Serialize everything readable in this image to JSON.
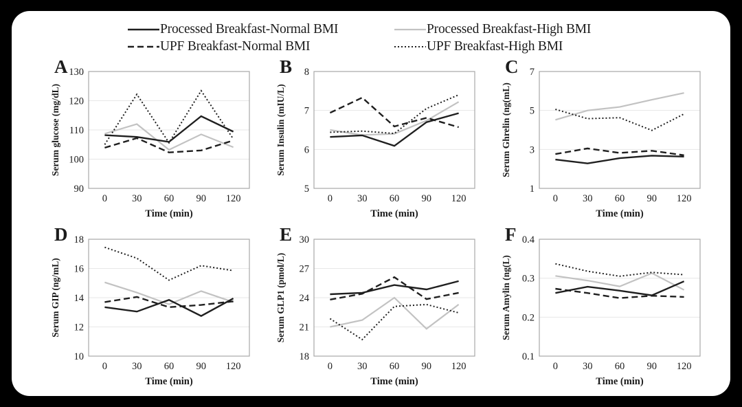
{
  "colors": {
    "frame_bg": "#000000",
    "panel_bg": "#ffffff",
    "line_black": "#1f1f1f",
    "line_gray": "#c2c2c2",
    "plot_border": "#a8a8a8",
    "gridline": "#e7e7e7",
    "text": "#1a1a1a"
  },
  "legend": {
    "items": [
      {
        "label": "Processed Breakfast-Normal BMI",
        "style": "solid",
        "color": "#1f1f1f"
      },
      {
        "label": "Processed Breakfast-High BMI",
        "style": "solid",
        "color": "#c2c2c2"
      },
      {
        "label": "UPF Breakfast-Normal BMI",
        "style": "dashed",
        "color": "#1f1f1f"
      },
      {
        "label": "UPF Breakfast-High BMI",
        "style": "dotted",
        "color": "#1f1f1f"
      }
    ]
  },
  "chart_data": [
    {
      "letter": "A",
      "type": "line",
      "ylabel": "Serum glucose (mg/dL)",
      "xlabel": "Time (min)",
      "x": [
        0,
        30,
        60,
        90,
        120
      ],
      "ylim": [
        90,
        130
      ],
      "yticks": [
        90,
        100,
        110,
        120,
        130
      ],
      "ydecimals": 0,
      "grid": true,
      "series": [
        {
          "name": "Processed Breakfast-Normal BMI",
          "values": [
            108.2,
            107.6,
            105.9,
            114.7,
            109.4
          ]
        },
        {
          "name": "Processed Breakfast-High BMI",
          "values": [
            108.7,
            112.0,
            103.2,
            108.5,
            104.1
          ]
        },
        {
          "name": "UPF Breakfast-Normal BMI",
          "values": [
            103.9,
            107.2,
            102.3,
            103.0,
            106.4
          ]
        },
        {
          "name": "UPF Breakfast-High BMI",
          "values": [
            105.0,
            122.2,
            105.6,
            123.4,
            106.9
          ]
        }
      ]
    },
    {
      "letter": "B",
      "type": "line",
      "ylabel": "Serum Insulin (mIU/L)",
      "xlabel": "Time (min)",
      "x": [
        0,
        30,
        60,
        90,
        120
      ],
      "ylim": [
        5,
        8
      ],
      "yticks": [
        5,
        6,
        7,
        8
      ],
      "ydecimals": 0,
      "grid": true,
      "series": [
        {
          "name": "Processed Breakfast-Normal BMI",
          "values": [
            6.32,
            6.36,
            6.09,
            6.7,
            6.93
          ]
        },
        {
          "name": "Processed Breakfast-High BMI",
          "values": [
            6.5,
            6.37,
            6.4,
            6.74,
            7.22
          ]
        },
        {
          "name": "UPF Breakfast-Normal BMI",
          "values": [
            6.94,
            7.33,
            6.59,
            6.81,
            6.57
          ]
        },
        {
          "name": "UPF Breakfast-High BMI",
          "values": [
            6.44,
            6.47,
            6.41,
            7.05,
            7.4
          ]
        }
      ]
    },
    {
      "letter": "C",
      "type": "line",
      "ylabel": "Serum Ghrelin (ng(mL)",
      "xlabel": "Time (min)",
      "x": [
        0,
        30,
        60,
        90,
        120
      ],
      "ylim": [
        1,
        7
      ],
      "yticks": [
        1,
        3,
        5,
        7
      ],
      "ydecimals": 0,
      "grid": true,
      "series": [
        {
          "name": "Processed Breakfast-Normal BMI",
          "values": [
            2.48,
            2.28,
            2.55,
            2.68,
            2.63
          ]
        },
        {
          "name": "Processed Breakfast-High BMI",
          "values": [
            4.52,
            5.0,
            5.18,
            5.55,
            5.9
          ]
        },
        {
          "name": "UPF Breakfast-Normal BMI",
          "values": [
            2.76,
            3.05,
            2.82,
            2.93,
            2.7
          ]
        },
        {
          "name": "UPF Breakfast-High BMI",
          "values": [
            5.06,
            4.58,
            4.63,
            3.98,
            4.82
          ]
        }
      ]
    },
    {
      "letter": "D",
      "type": "line",
      "ylabel": "Serum GIP (ng/mL)",
      "xlabel": "Time (min)",
      "x": [
        0,
        30,
        60,
        90,
        120
      ],
      "ylim": [
        10,
        18
      ],
      "yticks": [
        10,
        12,
        14,
        16,
        18
      ],
      "ydecimals": 0,
      "grid": true,
      "series": [
        {
          "name": "Processed Breakfast-Normal BMI",
          "values": [
            13.35,
            13.05,
            13.85,
            12.75,
            13.95
          ]
        },
        {
          "name": "Processed Breakfast-High BMI",
          "values": [
            15.05,
            14.35,
            13.55,
            14.45,
            13.7
          ]
        },
        {
          "name": "UPF Breakfast-Normal BMI",
          "values": [
            13.7,
            14.05,
            13.35,
            13.5,
            13.75
          ]
        },
        {
          "name": "UPF Breakfast-High BMI",
          "values": [
            17.45,
            16.7,
            15.2,
            16.2,
            15.85
          ]
        }
      ]
    },
    {
      "letter": "E",
      "type": "line",
      "ylabel": "Serum GLP1 (pmol/L)",
      "xlabel": "Time (min)",
      "x": [
        0,
        30,
        60,
        90,
        120
      ],
      "ylim": [
        18,
        30
      ],
      "yticks": [
        18,
        21,
        24,
        27,
        30
      ],
      "ydecimals": 0,
      "grid": true,
      "series": [
        {
          "name": "Processed Breakfast-Normal BMI",
          "values": [
            24.35,
            24.5,
            25.3,
            24.85,
            25.7
          ]
        },
        {
          "name": "Processed Breakfast-High BMI",
          "values": [
            21.0,
            21.7,
            24.0,
            20.8,
            23.3
          ]
        },
        {
          "name": "UPF Breakfast-Normal BMI",
          "values": [
            23.8,
            24.4,
            26.1,
            23.85,
            24.5
          ]
        },
        {
          "name": "UPF Breakfast-High BMI",
          "values": [
            21.85,
            19.7,
            23.1,
            23.3,
            22.45
          ]
        }
      ]
    },
    {
      "letter": "F",
      "type": "line",
      "ylabel": "Serum Amylin (ng(L)",
      "xlabel": "Time (min)",
      "x": [
        0,
        30,
        60,
        90,
        120
      ],
      "ylim": [
        0.1,
        0.4
      ],
      "yticks": [
        0.1,
        0.2,
        0.3,
        0.4
      ],
      "ydecimals": 1,
      "grid": true,
      "series": [
        {
          "name": "Processed Breakfast-Normal BMI",
          "values": [
            0.262,
            0.278,
            0.268,
            0.256,
            0.292
          ]
        },
        {
          "name": "Processed Breakfast-High BMI",
          "values": [
            0.306,
            0.294,
            0.279,
            0.313,
            0.27
          ]
        },
        {
          "name": "UPF Breakfast-Normal BMI",
          "values": [
            0.273,
            0.262,
            0.249,
            0.255,
            0.252
          ]
        },
        {
          "name": "UPF Breakfast-High BMI",
          "values": [
            0.337,
            0.318,
            0.305,
            0.315,
            0.309
          ]
        }
      ]
    }
  ]
}
